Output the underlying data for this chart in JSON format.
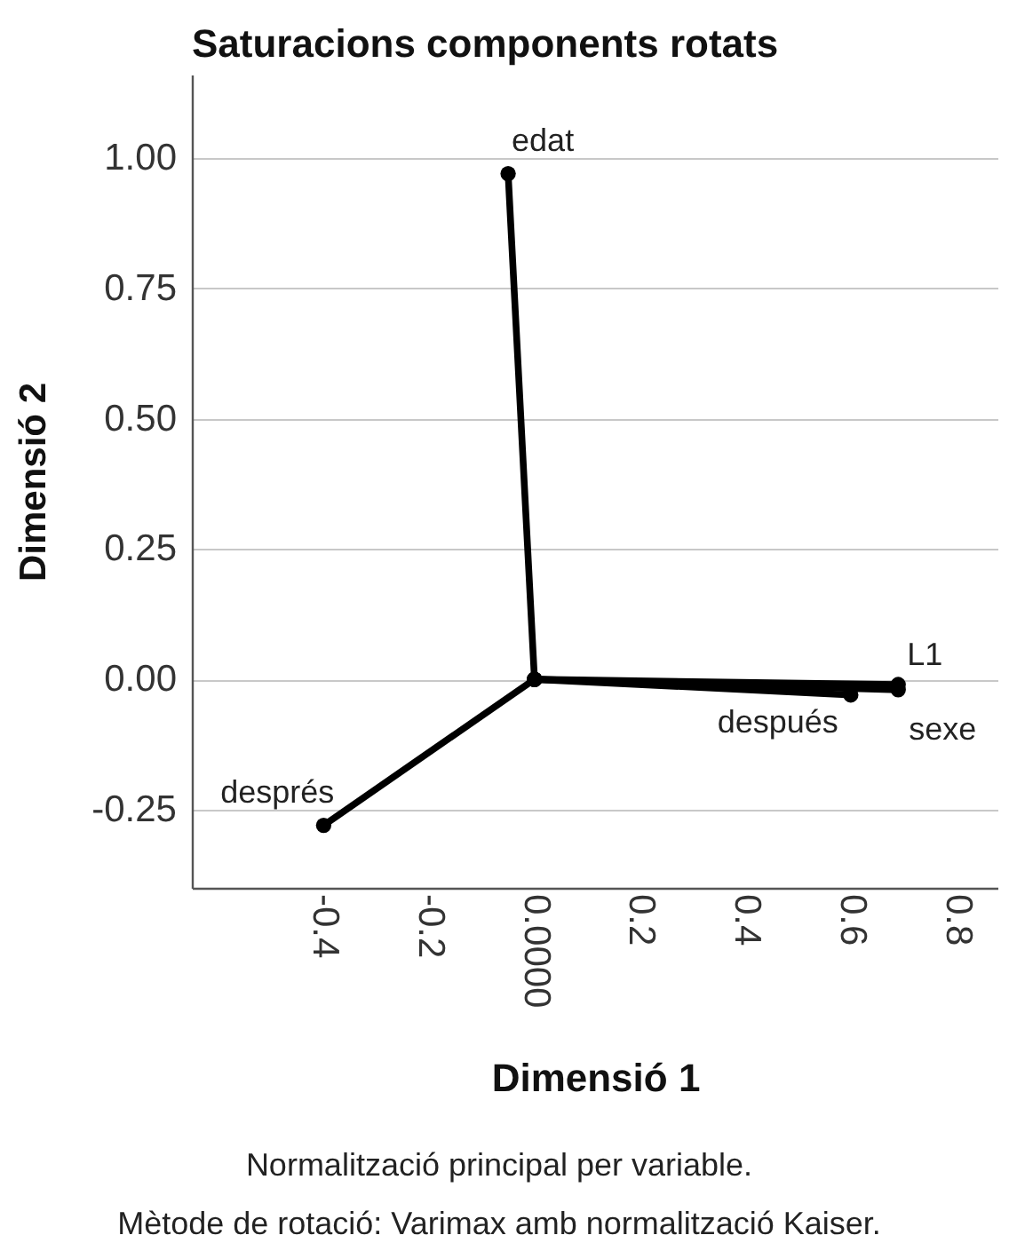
{
  "chart_data": {
    "type": "line",
    "title": "Saturacions components rotats",
    "xlabel": "Dimensió 1",
    "ylabel": "Dimensió 2",
    "series": [
      {
        "name": "edat",
        "color": "#000000",
        "x": [
          0,
          -0.05
        ],
        "values": [
          0,
          0.97
        ]
      },
      {
        "name": "L1",
        "color": "#000000",
        "x": [
          0,
          0.69
        ],
        "values": [
          0,
          -0.01
        ]
      },
      {
        "name": "sexe",
        "color": "#000000",
        "x": [
          0,
          0.69
        ],
        "values": [
          0,
          -0.02
        ]
      },
      {
        "name": "después",
        "color": "#000000",
        "x": [
          0,
          0.6
        ],
        "values": [
          0,
          -0.03
        ]
      },
      {
        "name": "després",
        "color": "#000000",
        "x": [
          0,
          -0.4
        ],
        "values": [
          0,
          -0.28
        ]
      }
    ],
    "xlim": [
      -0.65,
      0.88
    ],
    "xticks": [
      -0.4,
      -0.2,
      {
        "value": 0,
        "label": "0.0000"
      },
      0.2,
      0.4,
      0.6,
      0.8
    ],
    "ylim": [
      -0.4,
      1.16
    ],
    "yticks": [
      -0.25,
      {
        "value": 0,
        "label": "0.00"
      },
      0.25,
      {
        "value": 0.5,
        "label": "0.50"
      },
      0.75,
      {
        "value": 1,
        "label": "1.00"
      }
    ],
    "grid": "y",
    "legend": false,
    "marker": "circle",
    "line_style": "solid",
    "annotations": [
      "Normalització principal per variable.",
      "Mètode de rotació: Varimax amb normalització Kaiser."
    ]
  }
}
